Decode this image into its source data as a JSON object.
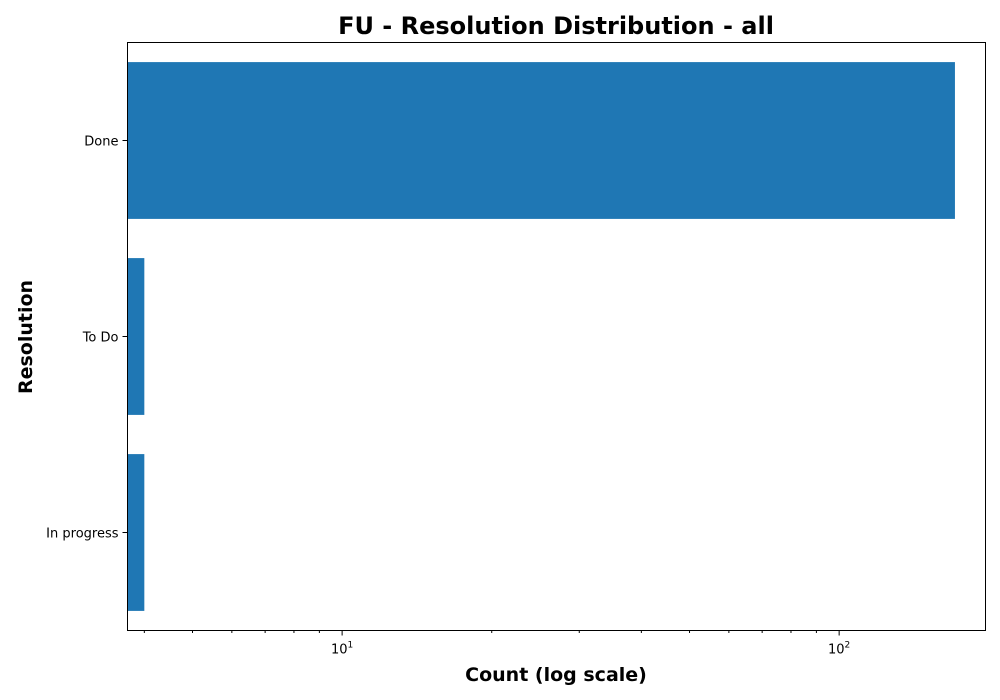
{
  "chart_data": {
    "type": "bar",
    "orientation": "horizontal",
    "title": "FU - Resolution Distribution - all",
    "xlabel": "Count (log scale)",
    "ylabel": "Resolution",
    "x_scale": "log",
    "xlim": [
      3.7,
      197
    ],
    "xticks": [
      {
        "value": 10,
        "base": "10",
        "exp": "1"
      },
      {
        "value": 100,
        "base": "10",
        "exp": "2"
      }
    ],
    "categories": [
      "Done",
      "To Do",
      "In progress"
    ],
    "values": [
      171,
      4,
      4
    ],
    "color": "#1f77b4",
    "grid": false
  }
}
